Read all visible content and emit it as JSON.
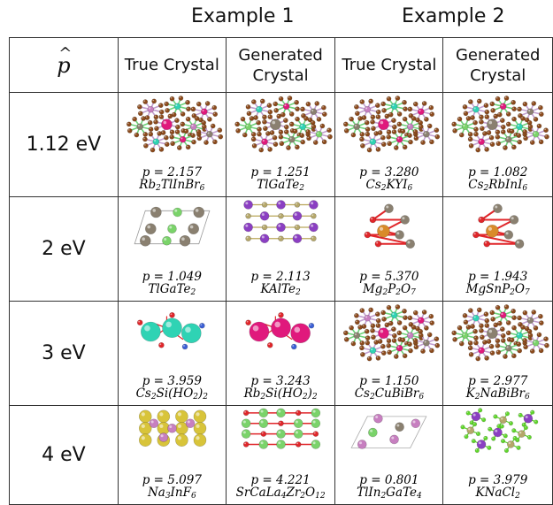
{
  "header": {
    "example1": "Example 1",
    "example2": "Example 2",
    "p_hat": "p",
    "hat": "^",
    "col_true": "True Crystal",
    "col_generated": "Generated Crystal"
  },
  "rows": [
    {
      "energy": "1.12 eV",
      "cells": [
        {
          "p": "p = 2.157",
          "formula": [
            "Rb",
            "2",
            "TlInBr",
            "6",
            "",
            ""
          ],
          "structure": "lattice-star"
        },
        {
          "p": "p = 1.251",
          "formula": [
            "TlGaTe",
            "2",
            "",
            "",
            "",
            ""
          ],
          "structure": "lattice-star"
        },
        {
          "p": "p = 3.280",
          "formula": [
            "Cs",
            "2",
            "KYI",
            "6",
            "",
            ""
          ],
          "structure": "lattice-star"
        },
        {
          "p": "p = 1.082",
          "formula": [
            "Cs",
            "2",
            "RbInI",
            "6",
            "",
            ""
          ],
          "structure": "lattice-star"
        }
      ]
    },
    {
      "energy": "2 eV",
      "cells": [
        {
          "p": "p = 1.049",
          "formula": [
            "TlGaTe",
            "2",
            "",
            "",
            "",
            ""
          ],
          "structure": "box"
        },
        {
          "p": "p = 2.113",
          "formula": [
            "KAlTe",
            "2",
            "",
            "",
            "",
            ""
          ],
          "structure": "layered"
        },
        {
          "p": "p = 5.370",
          "formula": [
            "Mg",
            "2",
            "P",
            "2",
            "O",
            "7"
          ],
          "structure": "cluster"
        },
        {
          "p": "p = 1.943",
          "formula": [
            "MgSnP",
            "2",
            "O",
            "7",
            "",
            ""
          ],
          "structure": "cluster"
        }
      ]
    },
    {
      "energy": "3 eV",
      "cells": [
        {
          "p": "p = 3.959",
          "formula": [
            "Cs",
            "2",
            "Si(HO",
            "2",
            ")",
            "2"
          ],
          "structure": "big-spheres"
        },
        {
          "p": "p = 3.243",
          "formula": [
            "Rb",
            "2",
            "Si(HO",
            "2",
            ")",
            "2"
          ],
          "structure": "big-spheres"
        },
        {
          "p": "p = 1.150",
          "formula": [
            "Cs",
            "2",
            "CuBiBr",
            "6",
            "",
            ""
          ],
          "structure": "lattice-star"
        },
        {
          "p": "p = 2.977",
          "formula": [
            "K",
            "2",
            "NaBiBr",
            "6",
            "",
            ""
          ],
          "structure": "lattice-star"
        }
      ]
    },
    {
      "energy": "4 eV",
      "cells": [
        {
          "p": "p = 5.097",
          "formula": [
            "Na",
            "3",
            "InF",
            "6",
            "",
            ""
          ],
          "structure": "yellow-grid"
        },
        {
          "p": "p = 4.221",
          "formula": [
            "SrCaLa",
            "4",
            "Zr",
            "2",
            "O",
            "12"
          ],
          "structure": "green-dense"
        },
        {
          "p": "p = 0.801",
          "formula": [
            "TlIn",
            "2",
            "GaTe",
            "4",
            "",
            ""
          ],
          "structure": "sparse"
        },
        {
          "p": "p = 3.979",
          "formula": [
            "KNaCl",
            "2",
            "",
            "",
            "",
            ""
          ],
          "structure": "scatter-green"
        }
      ]
    }
  ],
  "palette": {
    "brown": "#8b4a1c",
    "pink": "#c77fc0",
    "magenta": "#e0197c",
    "teal": "#2fd3b4",
    "green": "#7ad36a",
    "gray": "#8a8070",
    "purple": "#8b3fc2",
    "olive": "#b5a76a",
    "red": "#e0262a",
    "orange": "#d98b2a",
    "blue": "#3b5fd4",
    "yellow": "#d8c43a",
    "lime": "#5fd62a"
  }
}
